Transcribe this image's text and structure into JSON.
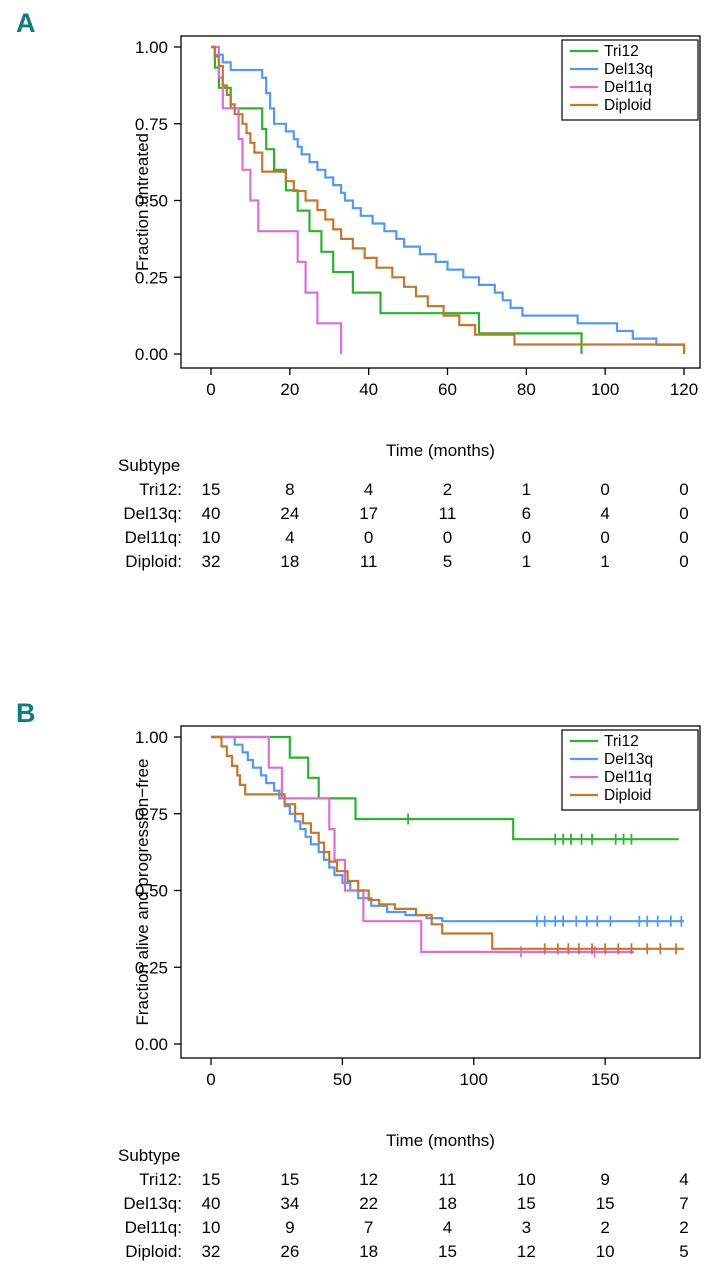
{
  "panel_letter_color": "#0b7d80",
  "chart_data": [
    {
      "type": "line",
      "panel_label": "A",
      "xlabel": "Time (months)",
      "ylabel": "Fraction untreated",
      "x_ticks": [
        0,
        20,
        40,
        60,
        80,
        100,
        120
      ],
      "y_ticks": [
        0,
        0.25,
        0.5,
        0.75,
        1
      ],
      "y_tick_labels": [
        "0.00",
        "0.25",
        "0.50",
        "0.75",
        "1.00"
      ],
      "xlim": [
        0,
        124
      ],
      "ylim": [
        0,
        1
      ],
      "legend_position": "top-right",
      "risk_table": {
        "header": "Subtype",
        "times": [
          0,
          20,
          40,
          60,
          80,
          100,
          120
        ],
        "rows": [
          {
            "name": "Tri12:",
            "counts": [
              15,
              8,
              4,
              2,
              1,
              0,
              0
            ]
          },
          {
            "name": "Del13q:",
            "counts": [
              40,
              24,
              17,
              11,
              6,
              4,
              0
            ]
          },
          {
            "name": "Del11q:",
            "counts": [
              10,
              4,
              0,
              0,
              0,
              0,
              0
            ]
          },
          {
            "name": "Diploid:",
            "counts": [
              32,
              18,
              11,
              5,
              1,
              1,
              0
            ]
          }
        ]
      },
      "series": [
        {
          "name": "Tri12",
          "color": "#2eb22e",
          "censors": [],
          "points": [
            [
              0,
              1
            ],
            [
              1,
              0.933
            ],
            [
              2,
              0.867
            ],
            [
              5,
              0.8
            ],
            [
              13,
              0.733
            ],
            [
              14,
              0.667
            ],
            [
              16,
              0.6
            ],
            [
              19,
              0.533
            ],
            [
              22,
              0.467
            ],
            [
              25,
              0.4
            ],
            [
              28,
              0.333
            ],
            [
              31,
              0.267
            ],
            [
              36,
              0.2
            ],
            [
              43,
              0.133
            ],
            [
              68,
              0.067
            ],
            [
              94,
              0
            ]
          ]
        },
        {
          "name": "Del13q",
          "color": "#5599ee",
          "censors": [],
          "points": [
            [
              0,
              1
            ],
            [
              1,
              0.975
            ],
            [
              3,
              0.95
            ],
            [
              5,
              0.925
            ],
            [
              13,
              0.9
            ],
            [
              14,
              0.85
            ],
            [
              15,
              0.8
            ],
            [
              16,
              0.75
            ],
            [
              19,
              0.725
            ],
            [
              21,
              0.7
            ],
            [
              22,
              0.675
            ],
            [
              23,
              0.65
            ],
            [
              25,
              0.625
            ],
            [
              27,
              0.6
            ],
            [
              29,
              0.575
            ],
            [
              31,
              0.55
            ],
            [
              33,
              0.525
            ],
            [
              34,
              0.5
            ],
            [
              36,
              0.475
            ],
            [
              38,
              0.45
            ],
            [
              41,
              0.425
            ],
            [
              44,
              0.4
            ],
            [
              47,
              0.375
            ],
            [
              49,
              0.35
            ],
            [
              53,
              0.325
            ],
            [
              57,
              0.3
            ],
            [
              60,
              0.275
            ],
            [
              64,
              0.25
            ],
            [
              68,
              0.225
            ],
            [
              72,
              0.2
            ],
            [
              74,
              0.175
            ],
            [
              76,
              0.15
            ],
            [
              79,
              0.125
            ],
            [
              93,
              0.1
            ],
            [
              103,
              0.075
            ],
            [
              107,
              0.05
            ],
            [
              113,
              0.03
            ],
            [
              120,
              0
            ]
          ]
        },
        {
          "name": "Del11q",
          "color": "#da70d6",
          "censors": [],
          "points": [
            [
              0,
              1
            ],
            [
              2,
              0.9
            ],
            [
              3,
              0.8
            ],
            [
              7,
              0.7
            ],
            [
              8,
              0.6
            ],
            [
              10,
              0.5
            ],
            [
              12,
              0.4
            ],
            [
              22,
              0.3
            ],
            [
              24,
              0.2
            ],
            [
              27,
              0.1
            ],
            [
              33,
              0
            ]
          ]
        },
        {
          "name": "Diploid",
          "color": "#c4772e",
          "censors": [],
          "points": [
            [
              0,
              1
            ],
            [
              1,
              0.969
            ],
            [
              2,
              0.938
            ],
            [
              3,
              0.875
            ],
            [
              4,
              0.844
            ],
            [
              5,
              0.813
            ],
            [
              6,
              0.781
            ],
            [
              8,
              0.75
            ],
            [
              9,
              0.719
            ],
            [
              10,
              0.688
            ],
            [
              11,
              0.656
            ],
            [
              13,
              0.594
            ],
            [
              19,
              0.563
            ],
            [
              21,
              0.531
            ],
            [
              24,
              0.5
            ],
            [
              27,
              0.469
            ],
            [
              29,
              0.438
            ],
            [
              31,
              0.406
            ],
            [
              33,
              0.375
            ],
            [
              36,
              0.344
            ],
            [
              39,
              0.313
            ],
            [
              42,
              0.281
            ],
            [
              46,
              0.25
            ],
            [
              49,
              0.219
            ],
            [
              52,
              0.188
            ],
            [
              55,
              0.156
            ],
            [
              59,
              0.125
            ],
            [
              63,
              0.094
            ],
            [
              67,
              0.063
            ],
            [
              77,
              0.031
            ],
            [
              118,
              0.031
            ],
            [
              120,
              0
            ]
          ]
        }
      ]
    },
    {
      "type": "line",
      "panel_label": "B",
      "xlabel": "Time (months)",
      "ylabel": "Fraction alive and progression−free",
      "x_ticks": [
        0,
        50,
        100,
        150
      ],
      "y_ticks": [
        0,
        0.25,
        0.5,
        0.75,
        1
      ],
      "y_tick_labels": [
        "0.00",
        "0.25",
        "0.50",
        "0.75",
        "1.00"
      ],
      "xlim": [
        0,
        187
      ],
      "ylim": [
        0,
        1
      ],
      "legend_position": "top-right",
      "risk_table": {
        "header": "Subtype",
        "times": [
          0,
          30,
          60,
          90,
          120,
          150,
          180
        ],
        "rows": [
          {
            "name": "Tri12:",
            "counts": [
              15,
              15,
              12,
              11,
              10,
              9,
              4
            ]
          },
          {
            "name": "Del13q:",
            "counts": [
              40,
              34,
              22,
              18,
              15,
              15,
              7
            ]
          },
          {
            "name": "Del11q:",
            "counts": [
              10,
              9,
              7,
              4,
              3,
              2,
              2
            ]
          },
          {
            "name": "Diploid:",
            "counts": [
              32,
              26,
              18,
              15,
              12,
              10,
              5
            ]
          }
        ]
      },
      "series": [
        {
          "name": "Tri12",
          "color": "#2eb22e",
          "censors": [
            75,
            131,
            134,
            137,
            141,
            145,
            154,
            157,
            160
          ],
          "points": [
            [
              0,
              1
            ],
            [
              30,
              0.933
            ],
            [
              37,
              0.867
            ],
            [
              41,
              0.8
            ],
            [
              55,
              0.733
            ],
            [
              115,
              0.667
            ],
            [
              178,
              0.667
            ]
          ]
        },
        {
          "name": "Del13q",
          "color": "#5599ee",
          "censors": [
            124,
            127,
            131,
            134,
            139,
            143,
            147,
            152,
            163,
            166,
            170,
            175,
            179
          ],
          "points": [
            [
              0,
              1
            ],
            [
              9,
              0.975
            ],
            [
              12,
              0.95
            ],
            [
              14,
              0.925
            ],
            [
              16,
              0.9
            ],
            [
              19,
              0.875
            ],
            [
              21,
              0.85
            ],
            [
              24,
              0.825
            ],
            [
              26,
              0.8
            ],
            [
              28,
              0.775
            ],
            [
              30,
              0.75
            ],
            [
              32,
              0.725
            ],
            [
              34,
              0.7
            ],
            [
              36,
              0.675
            ],
            [
              38,
              0.65
            ],
            [
              41,
              0.625
            ],
            [
              43,
              0.6
            ],
            [
              45,
              0.575
            ],
            [
              47,
              0.55
            ],
            [
              50,
              0.525
            ],
            [
              53,
              0.5
            ],
            [
              56,
              0.475
            ],
            [
              61,
              0.45
            ],
            [
              67,
              0.43
            ],
            [
              74,
              0.42
            ],
            [
              82,
              0.41
            ],
            [
              88,
              0.4
            ],
            [
              180,
              0.4
            ]
          ]
        },
        {
          "name": "Del11q",
          "color": "#da70d6",
          "censors": [
            118,
            146
          ],
          "points": [
            [
              0,
              1
            ],
            [
              22,
              0.9
            ],
            [
              27,
              0.8
            ],
            [
              45,
              0.7
            ],
            [
              47,
              0.6
            ],
            [
              51,
              0.5
            ],
            [
              58,
              0.4
            ],
            [
              80,
              0.3
            ],
            [
              161,
              0.3
            ]
          ]
        },
        {
          "name": "Diploid",
          "color": "#c4772e",
          "censors": [
            127,
            132,
            136,
            140,
            145,
            150,
            155,
            160,
            166,
            171,
            177
          ],
          "points": [
            [
              0,
              1
            ],
            [
              4,
              0.969
            ],
            [
              6,
              0.938
            ],
            [
              8,
              0.906
            ],
            [
              10,
              0.875
            ],
            [
              11,
              0.844
            ],
            [
              13,
              0.813
            ],
            [
              28,
              0.781
            ],
            [
              32,
              0.75
            ],
            [
              35,
              0.719
            ],
            [
              38,
              0.688
            ],
            [
              41,
              0.656
            ],
            [
              43,
              0.625
            ],
            [
              45,
              0.594
            ],
            [
              48,
              0.563
            ],
            [
              52,
              0.531
            ],
            [
              56,
              0.5
            ],
            [
              60,
              0.469
            ],
            [
              64,
              0.455
            ],
            [
              70,
              0.44
            ],
            [
              78,
              0.42
            ],
            [
              84,
              0.39
            ],
            [
              88,
              0.36
            ],
            [
              107,
              0.31
            ],
            [
              180,
              0.31
            ]
          ]
        }
      ]
    }
  ]
}
